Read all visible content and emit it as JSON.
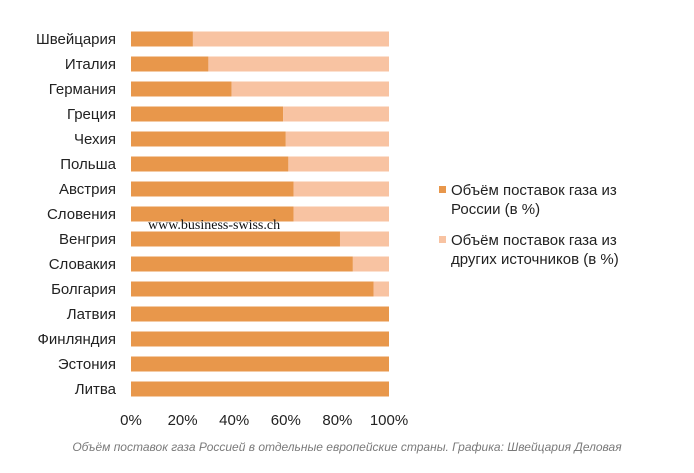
{
  "chart_data": {
    "type": "bar",
    "orientation": "horizontal",
    "stacked": true,
    "categories": [
      "Швейцария",
      "Италия",
      "Германия",
      "Греция",
      "Чехия",
      "Польша",
      "Австрия",
      "Словения",
      "Венгрия",
      "Словакия",
      "Болгария",
      "Латвия",
      "Финляндия",
      "Эстония",
      "Литва"
    ],
    "series": [
      {
        "name": "Объём поставок газа из России (в %)",
        "color": "#e8974b",
        "values": [
          24,
          30,
          39,
          59,
          60,
          61,
          63,
          63,
          81,
          86,
          94,
          100,
          100,
          100,
          100
        ]
      },
      {
        "name": "Объём поставок газа из других источников (в %)",
        "color": "#f8c3a2",
        "values": [
          76,
          70,
          61,
          41,
          40,
          39,
          37,
          37,
          19,
          14,
          6,
          0,
          0,
          0,
          0
        ]
      }
    ],
    "xlim": [
      0,
      100
    ],
    "xticks": [
      "0%",
      "20%",
      "40%",
      "60%",
      "80%",
      "100%"
    ],
    "grid": false,
    "legend_position": "right",
    "legend_lines": [
      [
        "Объём поставок газа из",
        "России (в %)"
      ],
      [
        "Объём поставок газа из",
        "других источников (в %)"
      ]
    ]
  },
  "watermark": "www.business-swiss.ch",
  "caption": "Объём поставок газа Россией в отдельные европейские страны. Графика: Швейцария Деловая"
}
